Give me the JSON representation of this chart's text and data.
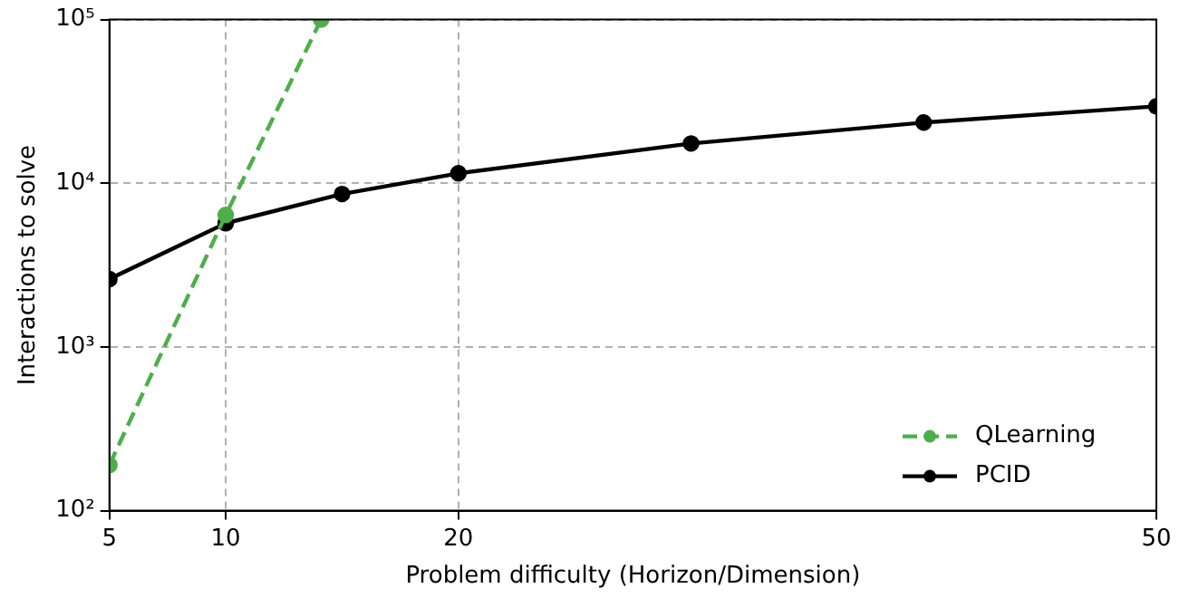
{
  "chart_data": {
    "type": "line",
    "xlabel": "Problem difficulty (Horizon/Dimension)",
    "ylabel": "Interactions to solve",
    "xlim": [
      5,
      50
    ],
    "xticks": [
      5,
      10,
      20,
      50
    ],
    "ylim": [
      100,
      100000
    ],
    "yticks": [
      {
        "value": 100,
        "label": "10²"
      },
      {
        "value": 1000,
        "label": "10³"
      },
      {
        "value": 10000,
        "label": "10⁴"
      },
      {
        "value": 100000,
        "label": "10⁵"
      }
    ],
    "log": "y",
    "grid": true,
    "legend": "bottom right",
    "marker": "circle",
    "series": [
      {
        "name": "QLearning",
        "color": "#4daf4a",
        "line_style": "dashed",
        "x": [
          5,
          10,
          14.1
        ],
        "values": [
          190,
          6400,
          100000
        ]
      },
      {
        "name": "PCID",
        "color": "#000000",
        "line_style": "solid",
        "x": [
          5,
          10,
          15,
          20,
          30,
          40,
          50
        ],
        "values": [
          2600,
          5700,
          8600,
          11500,
          17500,
          23500,
          29500
        ]
      }
    ]
  }
}
